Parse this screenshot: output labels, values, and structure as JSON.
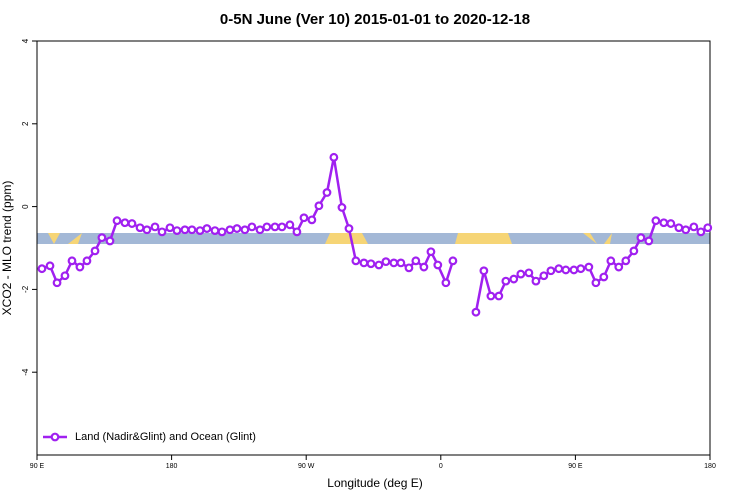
{
  "chart_data": {
    "type": "line",
    "title": "0-5N June (Ver 10)   2015-01-01 to 2020-12-18",
    "xlabel": "Longitude (deg E)",
    "ylabel": "XCO2 - MLO trend (ppm)",
    "xlim": [
      90,
      540
    ],
    "ylim": [
      -6,
      4
    ],
    "xticks": [
      {
        "value": 90,
        "label": "90 E"
      },
      {
        "value": 180,
        "label": "180"
      },
      {
        "value": 270,
        "label": "90 W"
      },
      {
        "value": 360,
        "label": "0"
      },
      {
        "value": 450,
        "label": "90 E"
      },
      {
        "value": 540,
        "label": "180"
      }
    ],
    "yticks": [
      -4,
      -2,
      0,
      2,
      4
    ],
    "legend": "bottom-left",
    "x": [
      93.3,
      98.7,
      103.4,
      108.7,
      113.4,
      118.7,
      123.4,
      128.8,
      133.4,
      138.8,
      143.5,
      148.8,
      153.5,
      158.9,
      163.5,
      168.9,
      173.6,
      178.9,
      183.6,
      188.9,
      193.6,
      199,
      203.6,
      209,
      213.7,
      219,
      223.7,
      229,
      233.7,
      239.1,
      243.7,
      249.1,
      253.8,
      259.1,
      263.8,
      268.5,
      273.8,
      278.5,
      283.9,
      288.5,
      293.9,
      298.6,
      303.2,
      308.6,
      313.3,
      318.6,
      323.3,
      328.6,
      333.3,
      338.7,
      343.3,
      348.7,
      353.4,
      358,
      363.4,
      368.1,
      375.8,
      383.5,
      388.8,
      393.5,
      398.8,
      403.5,
      408.8,
      413.5,
      418.9,
      423.6,
      428.9,
      433.6,
      438.9,
      443.6,
      449,
      453.6,
      459,
      463.7,
      469,
      473.7,
      479,
      483.7,
      489.1,
      493.8,
      499.1,
      503.8,
      509.1,
      513.8,
      519.2,
      523.8,
      529.2,
      533.9,
      538.5
    ],
    "series": [
      {
        "name": "Land (Nadir&Glint) and Ocean (Glint)",
        "color": "#a020f0",
        "values": [
          -1.5,
          -1.43,
          -1.84,
          -1.67,
          -1.31,
          -1.46,
          -1.31,
          -1.07,
          -0.75,
          -0.83,
          -0.34,
          -0.39,
          -0.41,
          -0.51,
          -0.56,
          -0.49,
          -0.61,
          -0.51,
          -0.58,
          -0.56,
          -0.56,
          -0.58,
          -0.53,
          -0.58,
          -0.61,
          -0.56,
          -0.53,
          -0.56,
          -0.49,
          -0.56,
          -0.49,
          -0.49,
          -0.49,
          -0.44,
          -0.61,
          -0.27,
          -0.32,
          0.02,
          0.34,
          1.19,
          -0.02,
          -0.53,
          -1.31,
          -1.36,
          -1.38,
          -1.41,
          -1.33,
          -1.36,
          -1.36,
          -1.48,
          -1.31,
          -1.46,
          -1.09,
          -1.41,
          -1.84,
          -1.31,
          null,
          -2.55,
          -1.55,
          -2.16,
          -2.16,
          -1.8,
          -1.75,
          -1.63,
          -1.6,
          -1.8,
          -1.67,
          -1.55,
          -1.5,
          -1.53,
          -1.53,
          -1.5,
          -1.46,
          -1.84,
          -1.7,
          -1.31,
          -1.46,
          -1.31,
          -1.07,
          -0.75,
          -0.83,
          -0.34,
          -0.39,
          -0.41,
          -0.51,
          -0.56,
          -0.49,
          -0.61,
          -0.51
        ]
      }
    ]
  }
}
